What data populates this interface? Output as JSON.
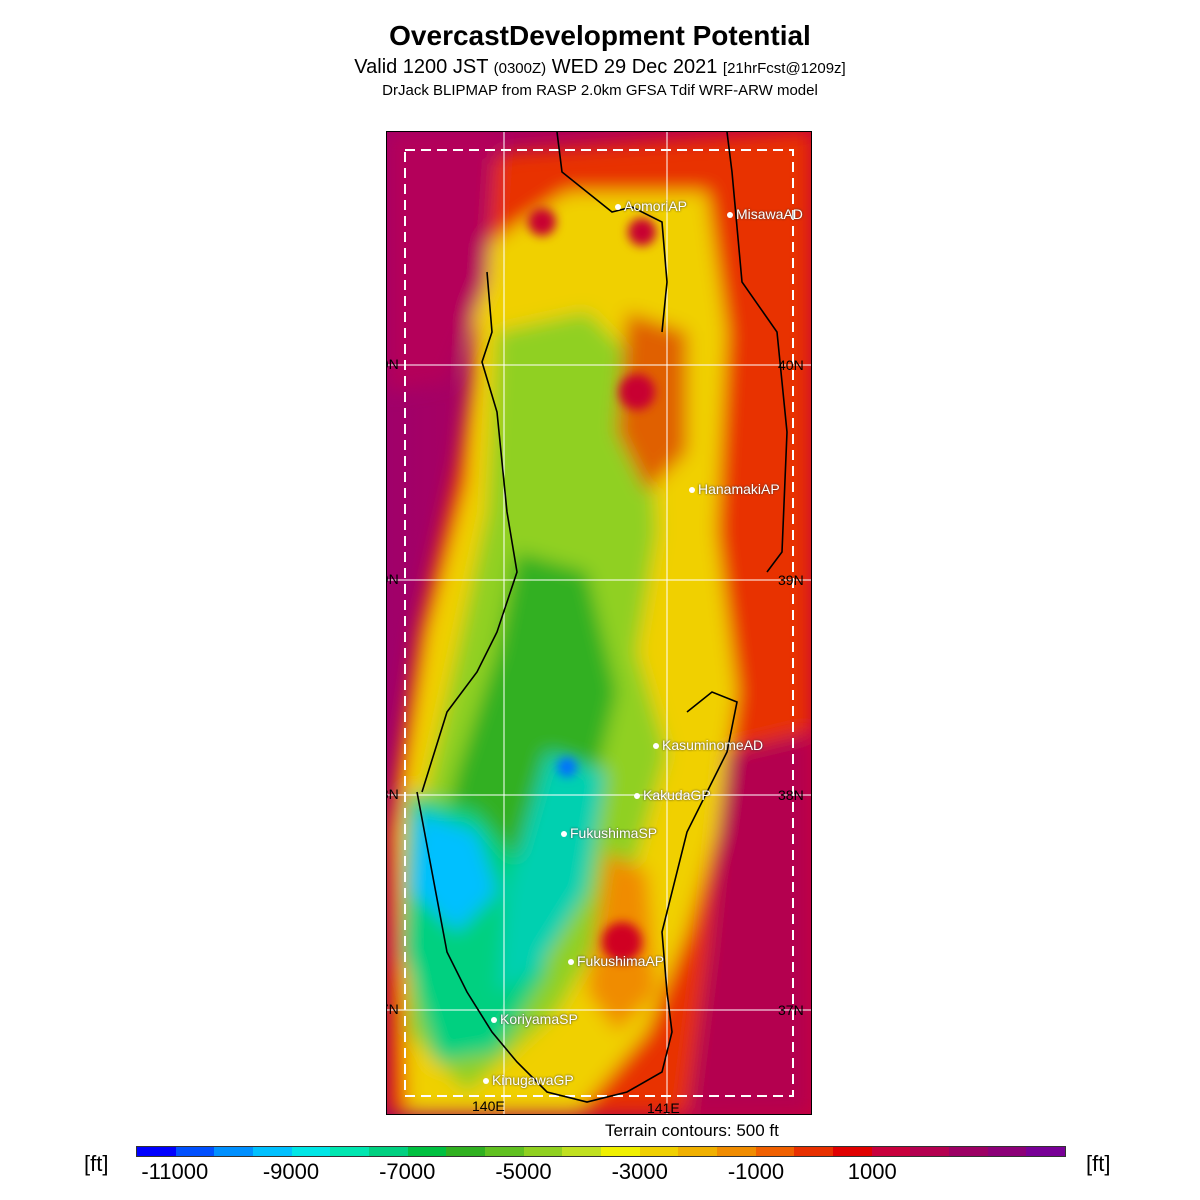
{
  "header": {
    "title": "OvercastDevelopment Potential",
    "valid_main": "Valid 1200 JST",
    "valid_z": "(0300Z)",
    "valid_date": "WED 29 Dec 2021",
    "valid_fcst": "[21hrFcst@1209z]",
    "model": "DrJack BLIPMAP from RASP 2.0km GFSA Tdif WRF-ARW model"
  },
  "map": {
    "lon_labels": [
      "140E",
      "141E"
    ],
    "lat_labels": [
      "40N",
      "39N",
      "38N",
      "37N"
    ],
    "stations": [
      "AomoriAP",
      "MisawaAD",
      "HanamakiAP",
      "KasuminomeAD",
      "KakudaGP",
      "FukushimaSP",
      "FukushimaAP",
      "KoriyamaSP",
      "KinugawaGP"
    ],
    "terrain_note": "Terrain contours: 500 ft"
  },
  "colorbar": {
    "unit": "[ft]",
    "ticks": [
      "-11000",
      "-9000",
      "-7000",
      "-5000",
      "-3000",
      "-1000",
      "1000"
    ],
    "colors": [
      "#0000ff",
      "#0050ff",
      "#0090ff",
      "#00c0ff",
      "#00e6e6",
      "#00e6b0",
      "#00d080",
      "#00c040",
      "#30b020",
      "#60c020",
      "#90d020",
      "#c0e020",
      "#f0f000",
      "#f0d000",
      "#f0b000",
      "#f08c00",
      "#f06000",
      "#e83000",
      "#e00000",
      "#c8003c",
      "#b40050",
      "#9c0064",
      "#8c0078",
      "#780096"
    ]
  },
  "accent": {
    "map_sea": "#b4005a",
    "land_green": "#40b020",
    "land_yellow": "#e8e800"
  }
}
